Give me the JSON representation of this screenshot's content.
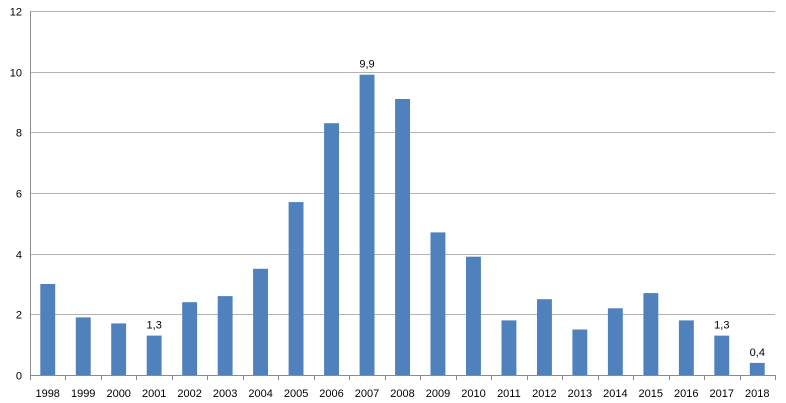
{
  "chart_data": {
    "type": "bar",
    "categories": [
      "1998",
      "1999",
      "2000",
      "2001",
      "2002",
      "2003",
      "2004",
      "2005",
      "2006",
      "2007",
      "2008",
      "2009",
      "2010",
      "2011",
      "2012",
      "2013",
      "2014",
      "2015",
      "2016",
      "2017",
      "2018"
    ],
    "values": [
      3.0,
      1.9,
      1.7,
      1.3,
      2.4,
      2.6,
      3.5,
      5.7,
      8.3,
      9.9,
      9.1,
      4.7,
      3.9,
      1.8,
      2.5,
      1.5,
      2.2,
      2.7,
      1.8,
      1.3,
      0.4
    ],
    "data_labels": [
      {
        "category": "2001",
        "text": "1,3"
      },
      {
        "category": "2007",
        "text": "9,9"
      },
      {
        "category": "2017",
        "text": "1,3"
      },
      {
        "category": "2018",
        "text": "0,4"
      }
    ],
    "title": "",
    "xlabel": "",
    "ylabel": "",
    "ylim": [
      0,
      12
    ],
    "yticks": [
      0,
      2,
      4,
      6,
      8,
      10,
      12
    ],
    "grid": true,
    "legend": "none",
    "colors": {
      "bar": "#4f81bd",
      "grid": "#b3b3b3",
      "axis": "#8c8c8c"
    }
  }
}
